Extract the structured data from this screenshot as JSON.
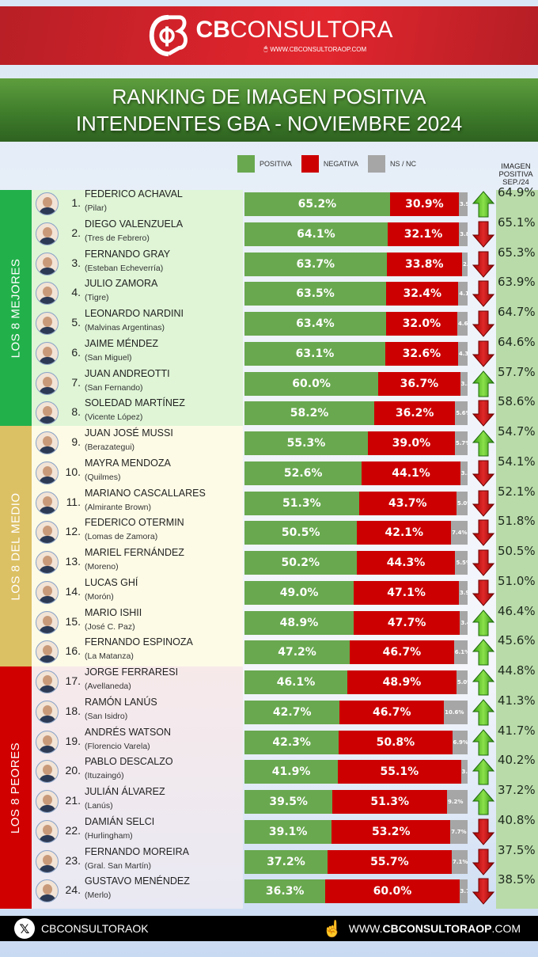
{
  "header": {
    "brand_bold": "CB",
    "brand_light": "CONSULTORA",
    "url": "WWW.CBCONSULTORAOP.COM",
    "colors": {
      "brand_red": "#d7232b",
      "title_green": "#3f7d2b"
    }
  },
  "title": {
    "line1": "RANKING DE IMAGEN POSITIVA",
    "line2": "INTENDENTES GBA - NOVIEMBRE 2024"
  },
  "legend": {
    "items": [
      {
        "label": "POSITIVA",
        "color": "#69a84f"
      },
      {
        "label": "NEGATIVA",
        "color": "#cc0000"
      },
      {
        "label": "NS / NC",
        "color": "#a6a6a6"
      }
    ]
  },
  "previous_header": {
    "line1": "IMAGEN",
    "line2": "POSITIVA",
    "line3": "SEP./24"
  },
  "groups": [
    {
      "label": "LOS 8 MEJORES",
      "color": "#22b04b",
      "bg": "#dff5d6"
    },
    {
      "label": "LOS 8 DEL MEDIO",
      "color": "#dcc064",
      "bg": "#fdfbe6"
    },
    {
      "label": "LOS 8 PEORES",
      "color": "#d10000",
      "bg": "#f7e9ea"
    }
  ],
  "footer": {
    "handle": "CBCONSULTORAOK",
    "url_pre": "WWW.",
    "url_bold": "CBCONSULTORAOP",
    "url_post": ".COM"
  },
  "chart_data": {
    "type": "bar",
    "orientation": "horizontal-stacked",
    "title": "RANKING DE IMAGEN POSITIVA - INTENDENTES GBA - NOVIEMBRE 2024",
    "series_names": [
      "POSITIVA",
      "NEGATIVA",
      "NS / NC"
    ],
    "extra_column": "IMAGEN POSITIVA SEP./24",
    "rows": [
      {
        "rank": "1.",
        "name": "FEDERICO ACHAVAL",
        "district": "(Pilar)",
        "positiva": "65.2%",
        "negativa": "30.9%",
        "nsnc": "3.9%",
        "trend": "up",
        "sep24": "64.9%"
      },
      {
        "rank": "2.",
        "name": "DIEGO VALENZUELA",
        "district": "(Tres de Febrero)",
        "positiva": "64.1%",
        "negativa": "32.1%",
        "nsnc": "3.8%",
        "trend": "down",
        "sep24": "65.1%"
      },
      {
        "rank": "3.",
        "name": "FERNANDO GRAY",
        "district": "(Esteban Echeverría)",
        "positiva": "63.7%",
        "negativa": "33.8%",
        "nsnc": "2.5%",
        "trend": "down",
        "sep24": "65.3%"
      },
      {
        "rank": "4.",
        "name": "JULIO ZAMORA",
        "district": "(Tigre)",
        "positiva": "63.5%",
        "negativa": "32.4%",
        "nsnc": "4.1%",
        "trend": "down",
        "sep24": "63.9%"
      },
      {
        "rank": "5.",
        "name": "LEONARDO NARDINI",
        "district": "(Malvinas Argentinas)",
        "positiva": "63.4%",
        "negativa": "32.0%",
        "nsnc": "4.6%",
        "trend": "down",
        "sep24": "64.7%"
      },
      {
        "rank": "6.",
        "name": "JAIME MÉNDEZ",
        "district": "(San Miguel)",
        "positiva": "63.1%",
        "negativa": "32.6%",
        "nsnc": "4.3%",
        "trend": "down",
        "sep24": "64.6%"
      },
      {
        "rank": "7.",
        "name": "JUAN ANDREOTTI",
        "district": "(San Fernando)",
        "positiva": "60.0%",
        "negativa": "36.7%",
        "nsnc": "3.3%",
        "trend": "up",
        "sep24": "57.7%"
      },
      {
        "rank": "8.",
        "name": "SOLEDAD MARTÍNEZ",
        "district": "(Vicente López)",
        "positiva": "58.2%",
        "negativa": "36.2%",
        "nsnc": "5.6%",
        "trend": "down",
        "sep24": "58.6%"
      },
      {
        "rank": "9.",
        "name": "JUAN JOSÉ MUSSI",
        "district": "(Berazategui)",
        "positiva": "55.3%",
        "negativa": "39.0%",
        "nsnc": "5.7%",
        "trend": "up",
        "sep24": "54.7%"
      },
      {
        "rank": "10.",
        "name": "MAYRA MENDOZA",
        "district": "(Quilmes)",
        "positiva": "52.6%",
        "negativa": "44.1%",
        "nsnc": "3.3%",
        "trend": "down",
        "sep24": "54.1%"
      },
      {
        "rank": "11.",
        "name": "MARIANO CASCALLARES",
        "district": "(Almirante Brown)",
        "positiva": "51.3%",
        "negativa": "43.7%",
        "nsnc": "5.0%",
        "trend": "down",
        "sep24": "52.1%"
      },
      {
        "rank": "12.",
        "name": "FEDERICO OTERMIN",
        "district": "(Lomas de Zamora)",
        "positiva": "50.5%",
        "negativa": "42.1%",
        "nsnc": "7.4%",
        "trend": "down",
        "sep24": "51.8%"
      },
      {
        "rank": "13.",
        "name": "MARIEL FERNÁNDEZ",
        "district": "(Moreno)",
        "positiva": "50.2%",
        "negativa": "44.3%",
        "nsnc": "5.5%",
        "trend": "down",
        "sep24": "50.5%"
      },
      {
        "rank": "14.",
        "name": "LUCAS GHÍ",
        "district": "(Morón)",
        "positiva": "49.0%",
        "negativa": "47.1%",
        "nsnc": "3.9%",
        "trend": "down",
        "sep24": "51.0%"
      },
      {
        "rank": "15.",
        "name": "MARIO ISHII",
        "district": "(José C. Paz)",
        "positiva": "48.9%",
        "negativa": "47.7%",
        "nsnc": "3.4%",
        "trend": "up",
        "sep24": "46.4%"
      },
      {
        "rank": "16.",
        "name": "FERNANDO ESPINOZA",
        "district": "(La Matanza)",
        "positiva": "47.2%",
        "negativa": "46.7%",
        "nsnc": "6.1%",
        "trend": "up",
        "sep24": "45.6%"
      },
      {
        "rank": "17.",
        "name": "JORGE FERRARESI",
        "district": "(Avellaneda)",
        "positiva": "46.1%",
        "negativa": "48.9%",
        "nsnc": "5.0%",
        "trend": "up",
        "sep24": "44.8%"
      },
      {
        "rank": "18.",
        "name": "RAMÓN LANÚS",
        "district": "(San Isidro)",
        "positiva": "42.7%",
        "negativa": "46.7%",
        "nsnc": "10.6%",
        "trend": "up",
        "sep24": "41.3%"
      },
      {
        "rank": "19.",
        "name": "ANDRÉS WATSON",
        "district": "(Florencio Varela)",
        "positiva": "42.3%",
        "negativa": "50.8%",
        "nsnc": "6.9%",
        "trend": "up",
        "sep24": "41.7%"
      },
      {
        "rank": "20.",
        "name": "PABLO DESCALZO",
        "district": "(Ituzaingó)",
        "positiva": "41.9%",
        "negativa": "55.1%",
        "nsnc": "3.0%",
        "trend": "up",
        "sep24": "40.2%"
      },
      {
        "rank": "21.",
        "name": "JULIÁN ÁLVAREZ",
        "district": "(Lanús)",
        "positiva": "39.5%",
        "negativa": "51.3%",
        "nsnc": "9.2%",
        "trend": "up",
        "sep24": "37.2%"
      },
      {
        "rank": "22.",
        "name": "DAMIÁN SELCI",
        "district": "(Hurlingham)",
        "positiva": "39.1%",
        "negativa": "53.2%",
        "nsnc": "7.7%",
        "trend": "down",
        "sep24": "40.8%"
      },
      {
        "rank": "23.",
        "name": "FERNANDO MOREIRA",
        "district": "(Gral. San Martín)",
        "positiva": "37.2%",
        "negativa": "55.7%",
        "nsnc": "7.1%",
        "trend": "down",
        "sep24": "37.5%"
      },
      {
        "rank": "24.",
        "name": "GUSTAVO MENÉNDEZ",
        "district": "(Merlo)",
        "positiva": "36.3%",
        "negativa": "60.0%",
        "nsnc": "3.7%",
        "trend": "down",
        "sep24": "38.5%"
      }
    ]
  }
}
